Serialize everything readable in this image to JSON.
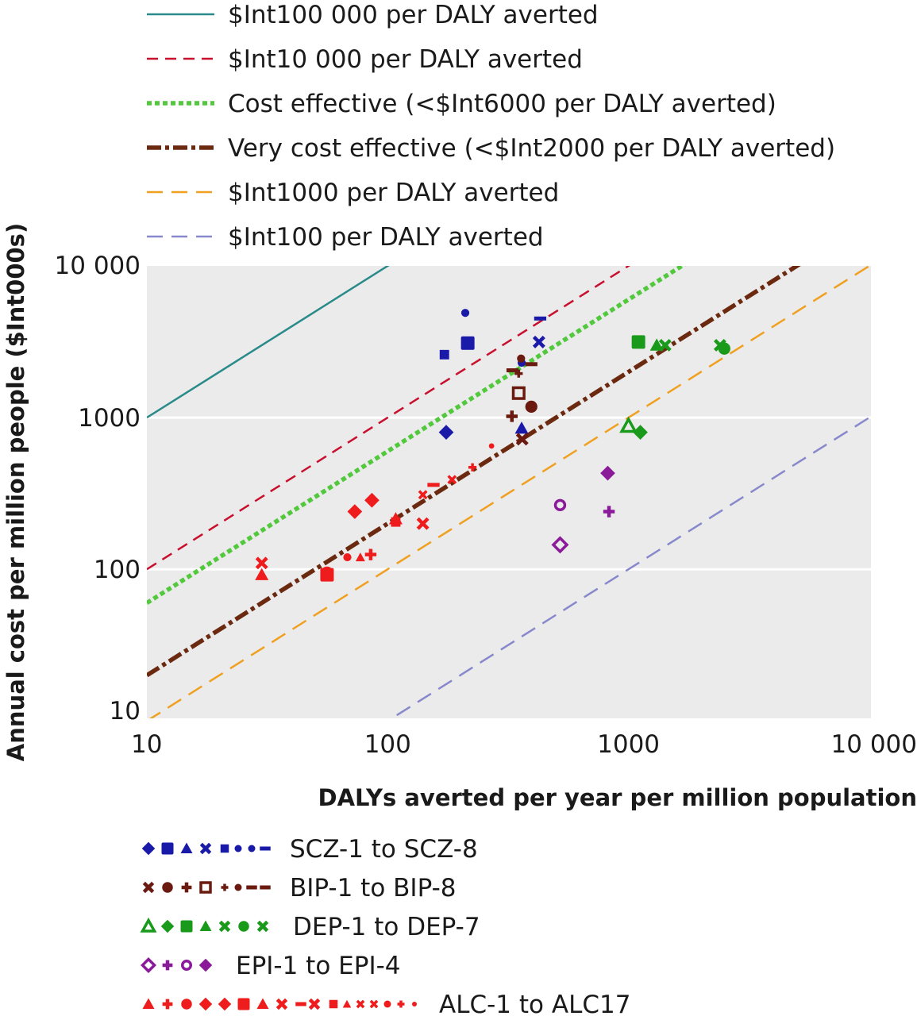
{
  "chart_data": {
    "type": "scatter",
    "xlabel": "DALYs averted per year per million population",
    "ylabel": "Annual cost per million people ($Int000s)",
    "x_scale": "log",
    "y_scale": "log",
    "xlim": [
      10,
      10000
    ],
    "ylim": [
      8,
      10000
    ],
    "x_ticks": [
      10,
      100,
      1000,
      10000
    ],
    "x_tick_labels": [
      "10",
      "100",
      "1000",
      "10 000"
    ],
    "y_ticks": [
      10,
      100,
      1000,
      10000
    ],
    "y_tick_labels": [
      "10",
      "100",
      "1000",
      "10 000"
    ],
    "grid": true,
    "plot_background": "#ebebeb",
    "reference_lines": [
      {
        "name": "$Int100 000 per DALY averted",
        "ratio": 100,
        "color": "#2a8b8a",
        "style": "solid"
      },
      {
        "name": "$Int10 000 per DALY averted",
        "ratio": 10,
        "color": "#c8102e",
        "style": "dash"
      },
      {
        "name": "Cost effective (<$Int6000 per DALY averted)",
        "ratio": 6,
        "color": "#52c83c",
        "style": "dot"
      },
      {
        "name": "Very cost effective (<$Int2000 per DALY averted)",
        "ratio": 2,
        "color": "#6b2a10",
        "style": "dashdot"
      },
      {
        "name": "$Int1000 per DALY averted",
        "ratio": 1,
        "color": "#f0a020",
        "style": "longdash"
      },
      {
        "name": "$Int100 per DALY averted",
        "ratio": 0.1,
        "color": "#8888cc",
        "style": "longdash"
      }
    ],
    "groups": [
      {
        "name": "SCZ-1 to SCZ-8",
        "color": "#1a1aa8",
        "points": [
          {
            "x": 175,
            "y": 800,
            "m": "diamond"
          },
          {
            "x": 215,
            "y": 3100,
            "m": "square"
          },
          {
            "x": 360,
            "y": 850,
            "m": "triangle"
          },
          {
            "x": 425,
            "y": 3150,
            "m": "cross"
          },
          {
            "x": 172,
            "y": 2600,
            "m": "smallsquare"
          },
          {
            "x": 210,
            "y": 4900,
            "m": "smallcircle"
          },
          {
            "x": 360,
            "y": 2300,
            "m": "smallcircle"
          },
          {
            "x": 430,
            "y": 4500,
            "m": "dash"
          }
        ]
      },
      {
        "name": "BIP-1 to BIP-8",
        "color": "#6b1a10",
        "points": [
          {
            "x": 362,
            "y": 720,
            "m": "cross"
          },
          {
            "x": 395,
            "y": 1180,
            "m": "circle"
          },
          {
            "x": 328,
            "y": 1020,
            "m": "plus"
          },
          {
            "x": 350,
            "y": 1450,
            "m": "opensquare"
          },
          {
            "x": 350,
            "y": 1950,
            "m": "smallplus"
          },
          {
            "x": 358,
            "y": 2450,
            "m": "smallcircle"
          },
          {
            "x": 330,
            "y": 2050,
            "m": "dash"
          },
          {
            "x": 395,
            "y": 2250,
            "m": "dash"
          }
        ]
      },
      {
        "name": "DEP-1 to DEP-7",
        "color": "#1a9a1a",
        "points": [
          {
            "x": 1000,
            "y": 880,
            "m": "opentriangle"
          },
          {
            "x": 1120,
            "y": 800,
            "m": "diamond"
          },
          {
            "x": 1100,
            "y": 3150,
            "m": "square"
          },
          {
            "x": 1310,
            "y": 3000,
            "m": "triangle"
          },
          {
            "x": 1420,
            "y": 3000,
            "m": "cross"
          },
          {
            "x": 2500,
            "y": 2850,
            "m": "circle"
          },
          {
            "x": 2400,
            "y": 3000,
            "m": "cross"
          }
        ]
      },
      {
        "name": "EPI-1 to EPI-4",
        "color": "#8a1a9a",
        "points": [
          {
            "x": 520,
            "y": 145,
            "m": "opendiamond"
          },
          {
            "x": 830,
            "y": 240,
            "m": "plus"
          },
          {
            "x": 520,
            "y": 265,
            "m": "opencircle"
          },
          {
            "x": 820,
            "y": 430,
            "m": "diamond"
          }
        ]
      },
      {
        "name": "ALC-1 to ALC17",
        "color": "#ee1c1c",
        "points": [
          {
            "x": 30,
            "y": 92,
            "m": "triangle"
          },
          {
            "x": 85,
            "y": 125,
            "m": "plus"
          },
          {
            "x": 56,
            "y": 95,
            "m": "circle"
          },
          {
            "x": 73,
            "y": 240,
            "m": "diamond"
          },
          {
            "x": 86,
            "y": 285,
            "m": "diamond"
          },
          {
            "x": 56,
            "y": 92,
            "m": "square"
          },
          {
            "x": 108,
            "y": 215,
            "m": "triangle"
          },
          {
            "x": 30,
            "y": 110,
            "m": "cross"
          },
          {
            "x": 155,
            "y": 360,
            "m": "dash"
          },
          {
            "x": 140,
            "y": 200,
            "m": "cross"
          },
          {
            "x": 108,
            "y": 205,
            "m": "smallsquare"
          },
          {
            "x": 77,
            "y": 120,
            "m": "smalltriangle"
          },
          {
            "x": 140,
            "y": 310,
            "m": "smallcross"
          },
          {
            "x": 185,
            "y": 390,
            "m": "smallcross"
          },
          {
            "x": 68,
            "y": 120,
            "m": "smallcircle"
          },
          {
            "x": 225,
            "y": 470,
            "m": "smallplus"
          },
          {
            "x": 270,
            "y": 650,
            "m": "smalldot"
          }
        ]
      }
    ]
  }
}
